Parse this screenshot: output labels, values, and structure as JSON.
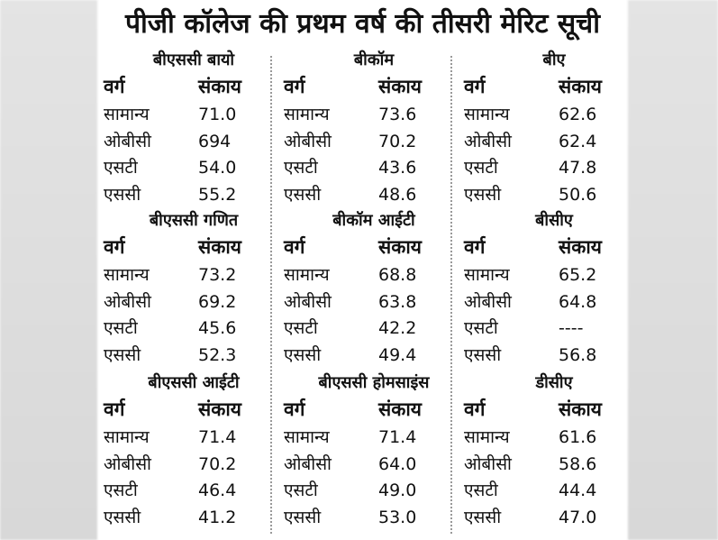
{
  "title": "पीजी कॉलेज की प्रथम वर्ष की तीसरी मेरिट सूची",
  "sections": [
    {
      "title": "बीएससी बायो",
      "headers": [
        "वर्ग",
        "संकाय"
      ],
      "rows": [
        [
          "सामान्य",
          "71.0"
        ],
        [
          "ओबीसी",
          "694"
        ],
        [
          "एसटी",
          "54.0"
        ],
        [
          "एससी",
          "55.2"
        ]
      ]
    },
    {
      "title": "बीकॉम",
      "headers": [
        "वर्ग",
        "संकाय"
      ],
      "rows": [
        [
          "सामान्य",
          "73.6"
        ],
        [
          "ओबीसी",
          "70.2"
        ],
        [
          "एसटी",
          "43.6"
        ],
        [
          "एससी",
          "48.6"
        ]
      ]
    },
    {
      "title": "बीए",
      "headers": [
        "वर्ग",
        "संकाय"
      ],
      "rows": [
        [
          "सामान्य",
          "62.6"
        ],
        [
          "ओबीसी",
          "62.4"
        ],
        [
          "एसटी",
          "47.8"
        ],
        [
          "एससी",
          "50.6"
        ]
      ]
    },
    {
      "title": "बीएससी गणित",
      "headers": [
        "वर्ग",
        "संकाय"
      ],
      "rows": [
        [
          "सामान्य",
          "73.2"
        ],
        [
          "ओबीसी",
          "69.2"
        ],
        [
          "एसटी",
          "45.6"
        ],
        [
          "एससी",
          "52.3"
        ]
      ]
    },
    {
      "title": "बीकॉम आईटी",
      "headers": [
        "वर्ग",
        "संकाय"
      ],
      "rows": [
        [
          "सामान्य",
          "68.8"
        ],
        [
          "ओबीसी",
          "63.8"
        ],
        [
          "एसटी",
          "42.2"
        ],
        [
          "एससी",
          "49.4"
        ]
      ]
    },
    {
      "title": "बीसीए",
      "headers": [
        "वर्ग",
        "संकाय"
      ],
      "rows": [
        [
          "सामान्य",
          "65.2"
        ],
        [
          "ओबीसी",
          "64.8"
        ],
        [
          "एसटी",
          "----"
        ],
        [
          "एससी",
          "56.8"
        ]
      ]
    },
    {
      "title": "बीएससी आईटी",
      "headers": [
        "वर्ग",
        "संकाय"
      ],
      "rows": [
        [
          "सामान्य",
          "71.4"
        ],
        [
          "ओबीसी",
          "70.2"
        ],
        [
          "एसटी",
          "46.4"
        ],
        [
          "एससी",
          "41.2"
        ]
      ]
    },
    {
      "title": "बीएससी होमसाइंस",
      "headers": [
        "वर्ग",
        "संकाय"
      ],
      "rows": [
        [
          "सामान्य",
          "71.4"
        ],
        [
          "ओबीसी",
          "64.0"
        ],
        [
          "एसटी",
          "49.0"
        ],
        [
          "एससी",
          "53.0"
        ]
      ]
    },
    {
      "title": "डीसीए",
      "headers": [
        "वर्ग",
        "संकाय"
      ],
      "rows": [
        [
          "सामान्य",
          "61.6"
        ],
        [
          "ओबीसी",
          "58.6"
        ],
        [
          "एसटी",
          "44.4"
        ],
        [
          "एससी",
          "47.0"
        ]
      ]
    }
  ]
}
